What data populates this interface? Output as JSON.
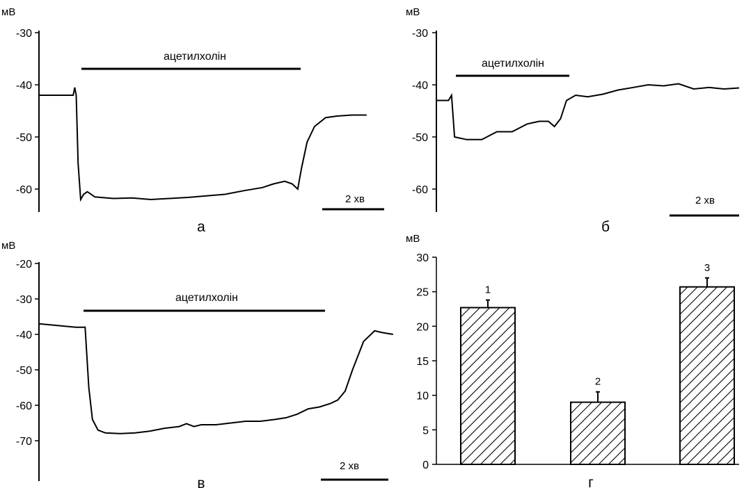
{
  "chart_data": [
    {
      "panel": "а",
      "type": "line",
      "ylabel": "мВ",
      "ylim": [
        -65,
        -30
      ],
      "ticks": [
        -30,
        -40,
        -50,
        -60
      ],
      "application_label": "ацетилхолін",
      "scale_bar_label": "2 хв",
      "series": [
        {
          "x": [
            0,
            0.4,
            0.75,
            0.92,
            0.96,
            1.0,
            1.05,
            1.12,
            1.2,
            1.3,
            1.5,
            2,
            2.5,
            3,
            3.5,
            4,
            4.5,
            5,
            5.5,
            6,
            6.3,
            6.6,
            6.8,
            6.95,
            7.05,
            7.2,
            7.4,
            7.7,
            8,
            8.4,
            8.8
          ],
          "y": [
            -42,
            -42,
            -42,
            -42,
            -40.5,
            -42,
            -55,
            -62,
            -61,
            -60.5,
            -61.5,
            -61.8,
            -61.7,
            -62,
            -61.8,
            -61.6,
            -61.3,
            -61,
            -60.3,
            -59.7,
            -59,
            -58.5,
            -59,
            -60,
            -56,
            -51,
            -48,
            -46.3,
            -46,
            -45.8,
            -45.8
          ]
        }
      ]
    },
    {
      "panel": "б",
      "type": "line",
      "ylabel": "мВ",
      "ylim": [
        -65,
        -30
      ],
      "ticks": [
        -30,
        -40,
        -50,
        -60
      ],
      "application_label": "ацетилхолін",
      "scale_bar_label": "2 хв",
      "series": [
        {
          "x": [
            0,
            0.2,
            0.4,
            0.5,
            0.6,
            1,
            1.5,
            2,
            2.5,
            3,
            3.4,
            3.7,
            3.9,
            4.1,
            4.3,
            4.6,
            5,
            5.5,
            6,
            6.5,
            7,
            7.5,
            8,
            8.5,
            9,
            9.5,
            10
          ],
          "y": [
            -43,
            -43,
            -43,
            -42,
            -50,
            -50.5,
            -50.5,
            -49,
            -49,
            -47.5,
            -47,
            -47,
            -48,
            -46.5,
            -43,
            -42,
            -42.3,
            -41.8,
            -41,
            -40.5,
            -40,
            -40.2,
            -39.8,
            -40.8,
            -40.5,
            -40.8,
            -40.6
          ]
        }
      ]
    },
    {
      "panel": "в",
      "type": "line",
      "ylabel": "мВ",
      "ylim": [
        -75,
        -20
      ],
      "ticks": [
        -20,
        -30,
        -40,
        -50,
        -60,
        -70
      ],
      "application_label": "ацетилхолін",
      "scale_bar_label": "2 хв",
      "series": [
        {
          "x": [
            0,
            0.5,
            1,
            1.25,
            1.35,
            1.45,
            1.6,
            1.8,
            2.2,
            2.6,
            3,
            3.4,
            3.8,
            4.0,
            4.2,
            4.4,
            4.8,
            5.2,
            5.6,
            6,
            6.4,
            6.7,
            7,
            7.3,
            7.6,
            7.9,
            8.1,
            8.3,
            8.5,
            8.8,
            9.1,
            9.3,
            9.6
          ],
          "y": [
            -37,
            -37.5,
            -38,
            -38,
            -55,
            -64,
            -67,
            -67.8,
            -68,
            -67.8,
            -67.3,
            -66.5,
            -66,
            -65.2,
            -66,
            -65.5,
            -65.5,
            -65,
            -64.5,
            -64.5,
            -64,
            -63.5,
            -62.5,
            -61,
            -60.5,
            -59.5,
            -58.5,
            -56,
            -50,
            -42,
            -39,
            -39.5,
            -40
          ]
        }
      ]
    },
    {
      "panel": "г",
      "type": "bar",
      "ylabel": "мВ",
      "ylim": [
        0,
        30
      ],
      "ticks": [
        0,
        5,
        10,
        15,
        20,
        25,
        30
      ],
      "categories": [
        "1",
        "2",
        "3"
      ],
      "values": [
        22.7,
        9,
        25.7
      ],
      "errors": [
        1.1,
        1.5,
        1.3
      ]
    }
  ],
  "panel_letters": [
    "а",
    "б",
    "в",
    "г"
  ]
}
